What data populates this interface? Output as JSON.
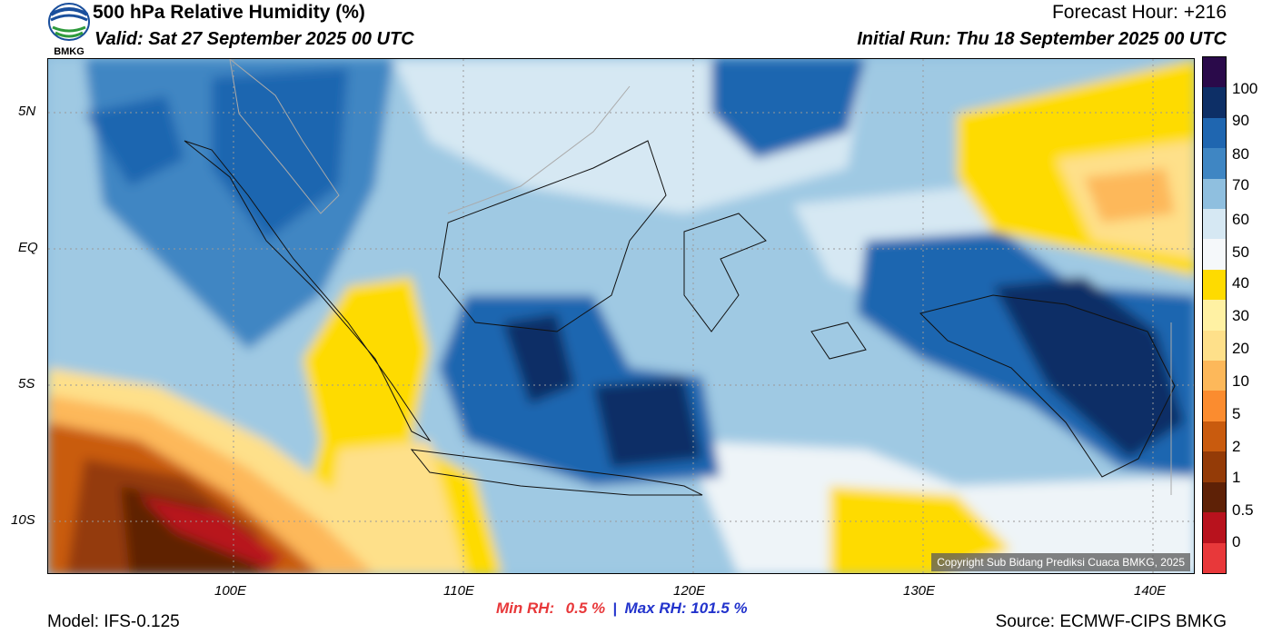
{
  "header": {
    "title": "500 hPa Relative Humidity (%)",
    "valid": "Valid: Sat 27 September 2025 00 UTC",
    "forecast_hour": "Forecast Hour: +216",
    "initial_run": "Initial Run: Thu 18 September 2025 00 UTC"
  },
  "logo": {
    "text": "BMKG",
    "icon": "bmkg-logo-icon"
  },
  "axes": {
    "lat_ticks": [
      "5N",
      "EQ",
      "5S",
      "10S"
    ],
    "lon_ticks": [
      "100E",
      "110E",
      "120E",
      "130E",
      "140E"
    ]
  },
  "colorbar": {
    "labels": [
      "100",
      "90",
      "80",
      "70",
      "60",
      "50",
      "40",
      "30",
      "20",
      "10",
      "5",
      "2",
      "1",
      "0.5",
      "0"
    ],
    "colors": [
      "#2a0a4a",
      "#0d2f66",
      "#1f66b0",
      "#3f86c3",
      "#8fbfdf",
      "#d6e8f3",
      "#f5f8fa",
      "#fedb00",
      "#fff1a3",
      "#fee08a",
      "#fdb85a",
      "#fb8c2f",
      "#c95b0e",
      "#943b07",
      "#5e2106",
      "#b8121d",
      "#e8383a"
    ]
  },
  "stats": {
    "min_label": "Min RH:",
    "min_value": "0.5 %",
    "separator": "|",
    "max_label": "Max RH: 101.5 %"
  },
  "footer": {
    "model": "Model: IFS-0.125",
    "source": "Source: ECMWF-CIPS BMKG",
    "copyright": "Copyright Sub Bidang Prediksi Cuaca BMKG, 2025"
  }
}
